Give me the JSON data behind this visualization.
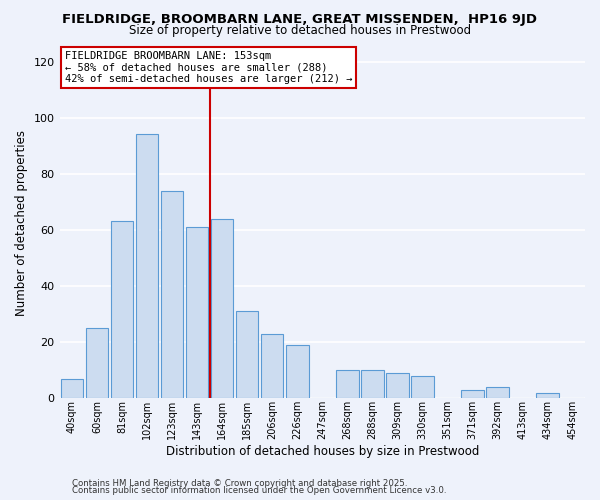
{
  "title": "FIELDRIDGE, BROOMBARN LANE, GREAT MISSENDEN,  HP16 9JD",
  "subtitle": "Size of property relative to detached houses in Prestwood",
  "xlabel": "Distribution of detached houses by size in Prestwood",
  "ylabel": "Number of detached properties",
  "bar_color": "#ccdcf0",
  "bar_edge_color": "#5b9bd5",
  "background_color": "#eef2fb",
  "grid_color": "#ffffff",
  "categories": [
    "40sqm",
    "60sqm",
    "81sqm",
    "102sqm",
    "123sqm",
    "143sqm",
    "164sqm",
    "185sqm",
    "206sqm",
    "226sqm",
    "247sqm",
    "268sqm",
    "288sqm",
    "309sqm",
    "330sqm",
    "351sqm",
    "371sqm",
    "392sqm",
    "413sqm",
    "434sqm",
    "454sqm"
  ],
  "values": [
    7,
    25,
    63,
    94,
    74,
    61,
    64,
    31,
    23,
    19,
    0,
    10,
    10,
    9,
    8,
    0,
    3,
    4,
    0,
    2,
    0
  ],
  "ylim": [
    0,
    125
  ],
  "yticks": [
    0,
    20,
    40,
    60,
    80,
    100,
    120
  ],
  "property_line_x": 5.5,
  "property_line_color": "#cc0000",
  "annotation_title": "FIELDRIDGE BROOMBARN LANE: 153sqm",
  "annotation_line1": "← 58% of detached houses are smaller (288)",
  "annotation_line2": "42% of semi-detached houses are larger (212) →",
  "annotation_box_color": "#ffffff",
  "annotation_box_edge_color": "#cc0000",
  "footer1": "Contains HM Land Registry data © Crown copyright and database right 2025.",
  "footer2": "Contains public sector information licensed under the Open Government Licence v3.0."
}
